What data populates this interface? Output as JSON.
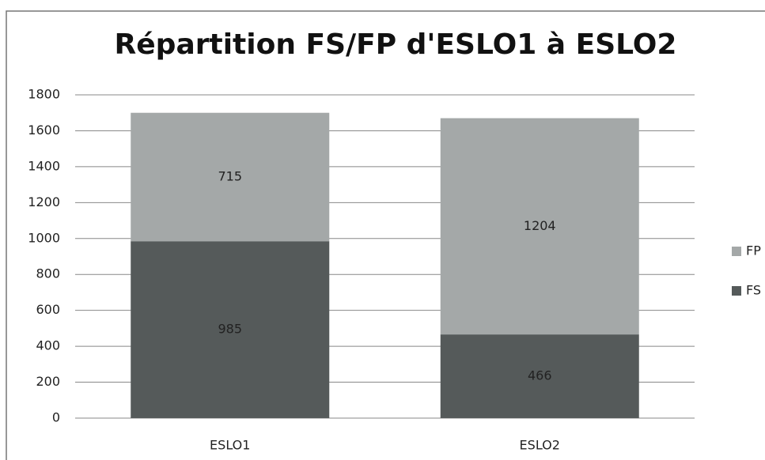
{
  "chart_data": {
    "type": "stacked_bar",
    "title": "Répartition FS/FP d'ESLO1 à ESLO2",
    "categories": [
      "ESLO1",
      "ESLO2"
    ],
    "series": [
      {
        "name": "FS",
        "color": "#555a5a",
        "values": [
          985,
          466
        ]
      },
      {
        "name": "FP",
        "color": "#a4a8a8",
        "values": [
          715,
          1204
        ]
      }
    ],
    "ylim": [
      0,
      1800
    ],
    "yticks": [
      0,
      200,
      400,
      600,
      800,
      1000,
      1200,
      1400,
      1600,
      1800
    ],
    "grid": true,
    "legend": "right"
  }
}
